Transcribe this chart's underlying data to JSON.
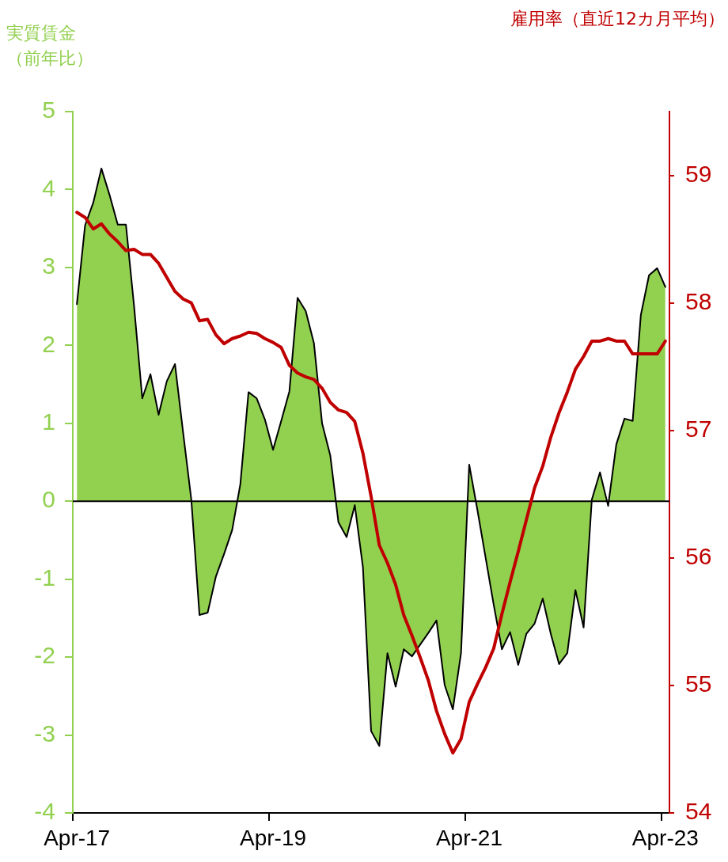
{
  "chart_data": {
    "type": "area",
    "ylabel": "実質賃金（前年比）",
    "y2label": "雇用率（直近12カ月平均）",
    "categories": [
      "Apr-17",
      null,
      null,
      null,
      null,
      null,
      null,
      null,
      null,
      null,
      null,
      null,
      null,
      null,
      null,
      null,
      null,
      null,
      null,
      null,
      null,
      null,
      null,
      null,
      "Apr-19",
      null,
      null,
      null,
      null,
      null,
      null,
      null,
      null,
      null,
      null,
      null,
      null,
      null,
      null,
      null,
      null,
      null,
      null,
      null,
      null,
      null,
      null,
      null,
      "Apr-21",
      null,
      null,
      null,
      null,
      null,
      null,
      null,
      null,
      null,
      null,
      null,
      null,
      null,
      null,
      null,
      null,
      null,
      null,
      null,
      null,
      null,
      null,
      null,
      "Apr-23"
    ],
    "series": [
      {
        "color": "#92d050",
        "values": [
          2.53,
          3.54,
          3.83,
          4.27,
          3.93,
          3.55,
          3.55,
          2.5,
          1.32,
          1.63,
          1.11,
          1.54,
          1.76,
          0.88,
          0.02,
          -1.46,
          -1.43,
          -0.97,
          -0.68,
          -0.37,
          0.22,
          1.4,
          1.32,
          1.05,
          0.66,
          1.03,
          1.41,
          2.61,
          2.44,
          2.03,
          1.0,
          0.59,
          -0.27,
          -0.46,
          -0.05,
          -0.85,
          -2.95,
          -3.14,
          -1.95,
          -2.38,
          -1.9,
          -1.99,
          -1.84,
          -1.69,
          -1.53,
          -2.36,
          -2.67,
          -1.95,
          0.47,
          -0.11,
          -0.72,
          -1.33,
          -1.9,
          -1.68,
          -2.1,
          -1.7,
          -1.57,
          -1.25,
          -1.71,
          -2.09,
          -1.95,
          -1.14,
          -1.62,
          0.02,
          0.37,
          -0.06,
          0.73,
          1.06,
          1.03,
          2.39,
          2.9,
          2.99,
          2.75
        ]
      },
      {
        "type": "line",
        "color": "#c00000",
        "axis": "y2",
        "values": [
          58.71,
          58.67,
          58.58,
          58.62,
          58.54,
          58.48,
          58.41,
          58.42,
          58.38,
          58.38,
          58.31,
          58.2,
          58.09,
          58.03,
          58.0,
          57.86,
          57.87,
          57.75,
          57.68,
          57.72,
          57.74,
          57.77,
          57.76,
          57.72,
          57.69,
          57.65,
          57.51,
          57.45,
          57.42,
          57.4,
          57.33,
          57.22,
          57.16,
          57.14,
          57.07,
          56.82,
          56.48,
          56.1,
          55.96,
          55.79,
          55.55,
          55.39,
          55.22,
          55.04,
          54.8,
          54.62,
          54.47,
          54.58,
          54.87,
          55.01,
          55.14,
          55.29,
          55.56,
          55.81,
          56.05,
          56.3,
          56.55,
          56.72,
          56.95,
          57.14,
          57.3,
          57.48,
          57.58,
          57.7,
          57.7,
          57.72,
          57.7,
          57.7,
          57.6,
          57.6,
          57.6,
          57.6,
          57.7
        ]
      }
    ],
    "ylim": [
      -4,
      5
    ],
    "yticks": [
      -4,
      -3,
      -2,
      -1,
      0,
      1,
      2,
      3,
      4,
      5
    ],
    "y2lim": [
      54,
      59.5
    ],
    "y2ticks": [
      54,
      55,
      56,
      57,
      58,
      59
    ],
    "ref_lines": [
      {
        "axis": "y",
        "value": 0,
        "color": "#000000"
      }
    ]
  }
}
